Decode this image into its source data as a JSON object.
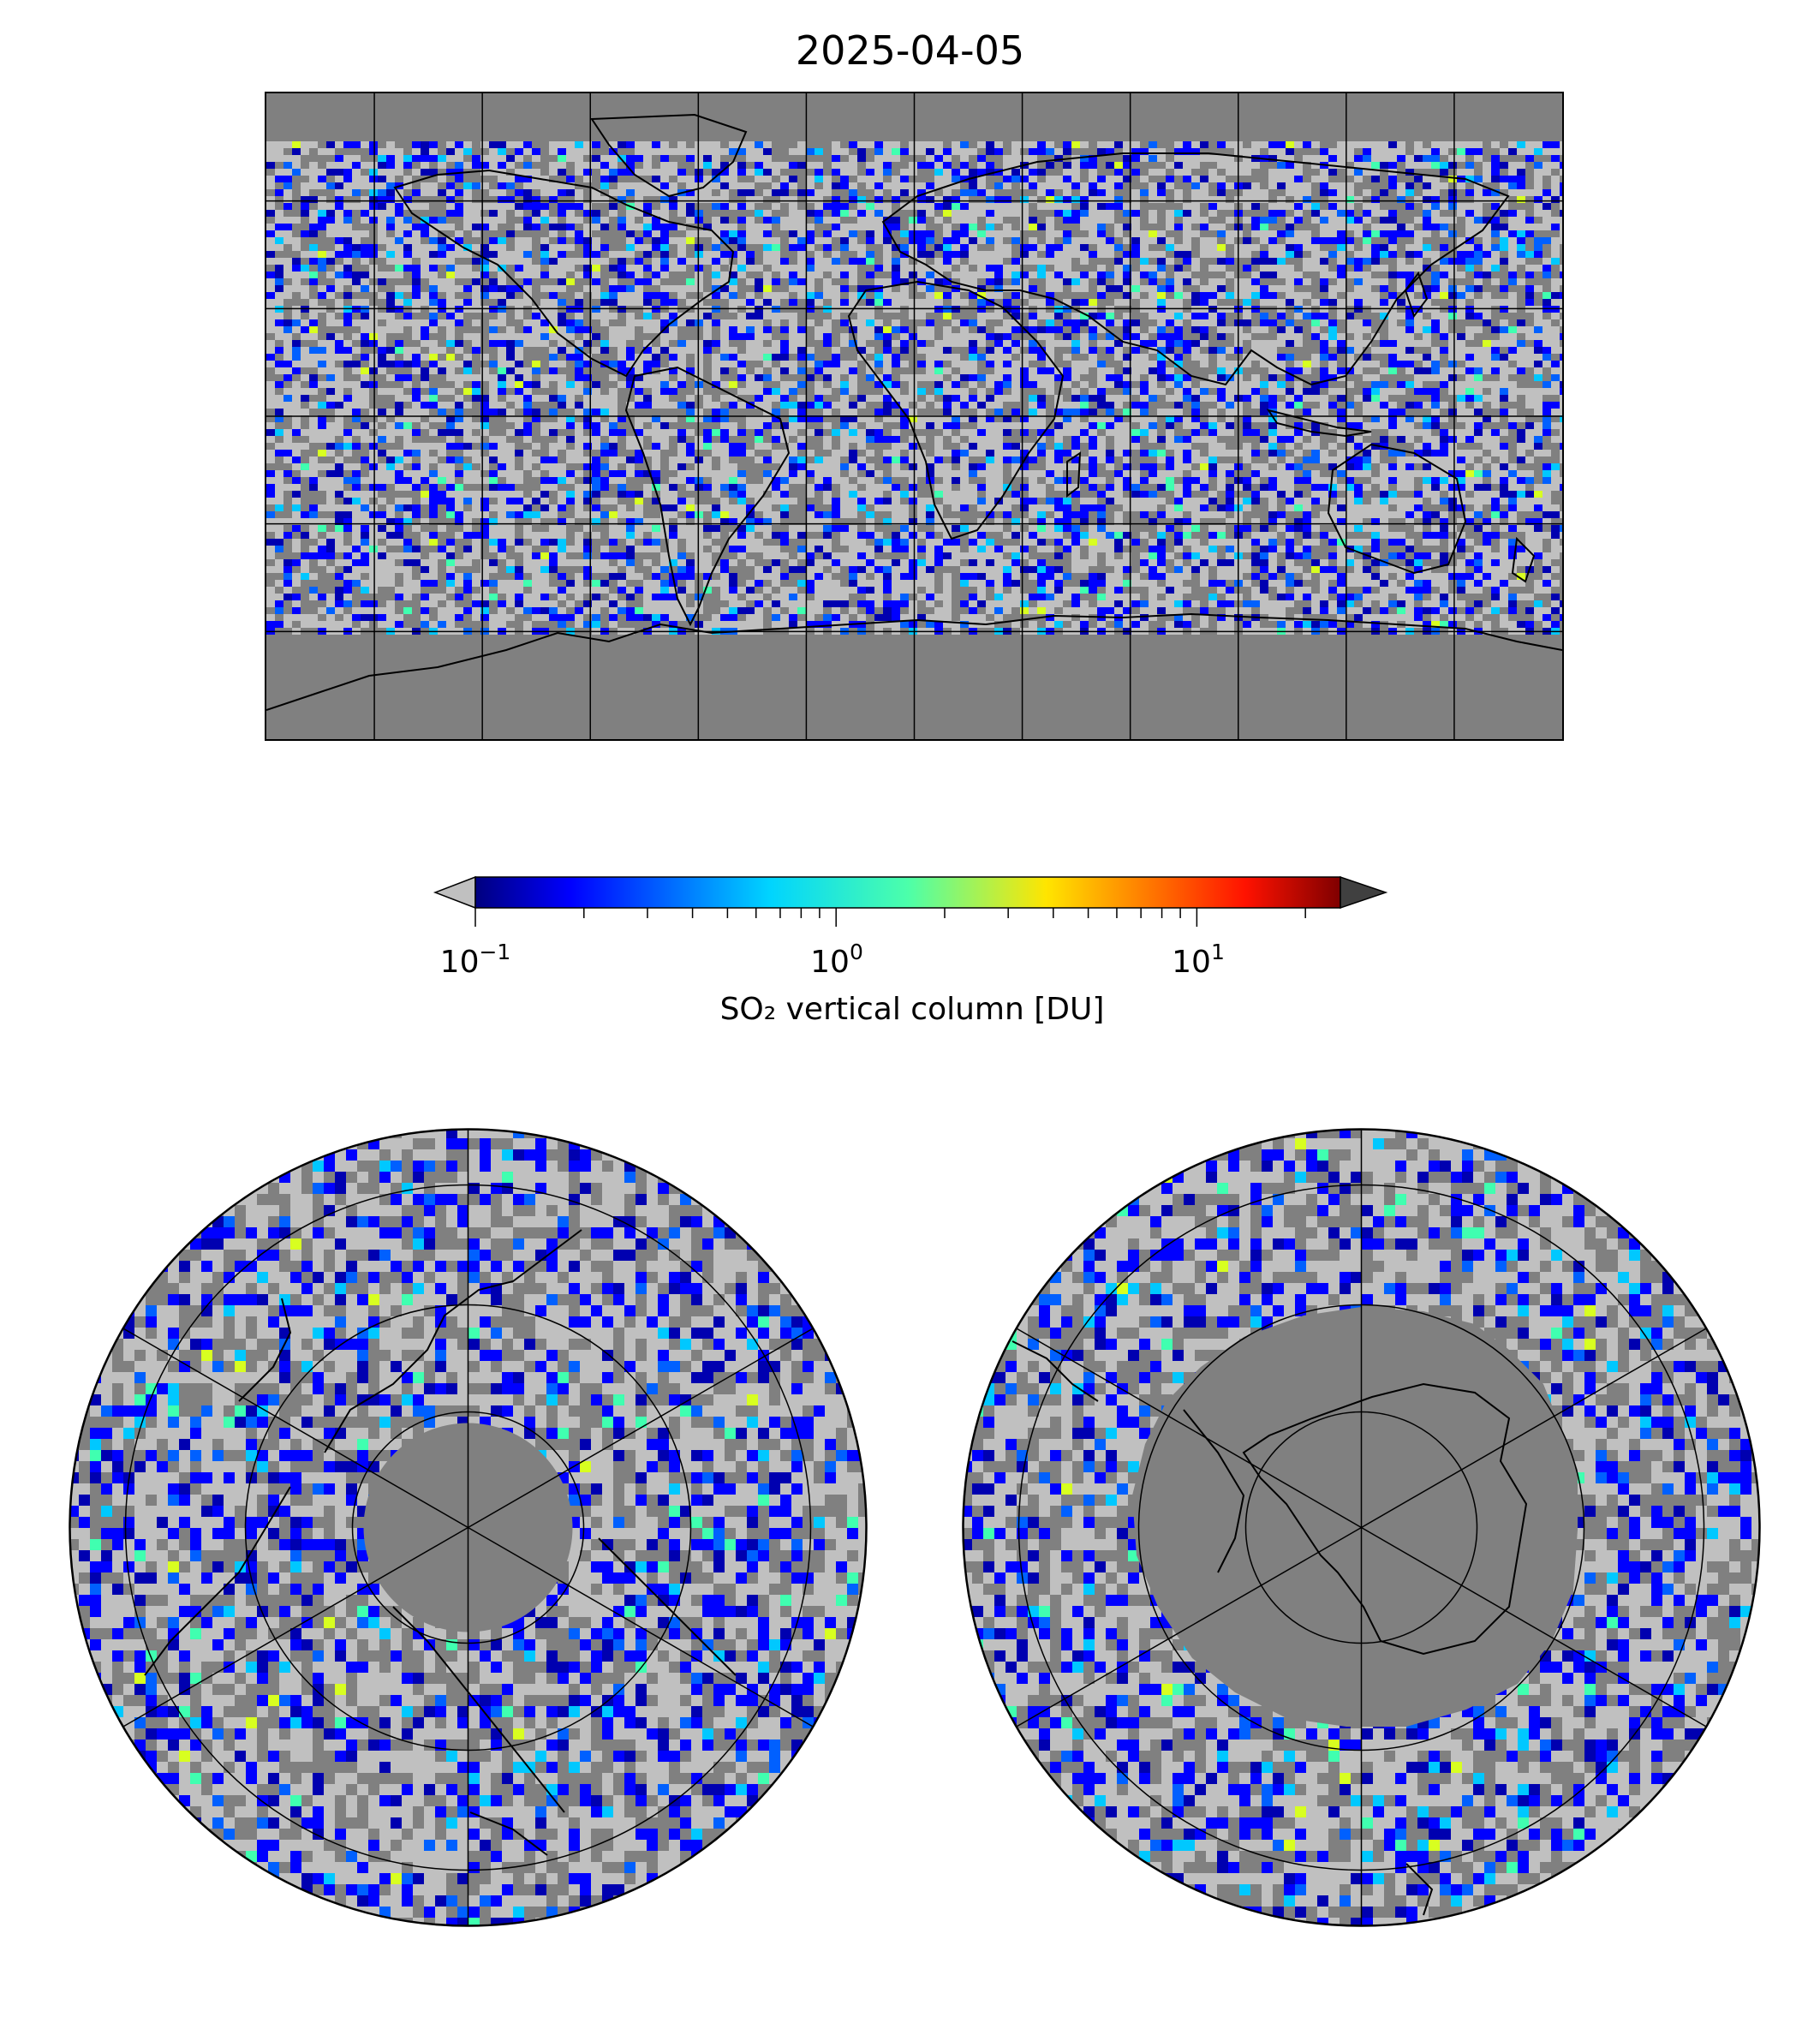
{
  "title": "2025-04-05",
  "colorbar": {
    "label": "SO₂ vertical column [DU]",
    "scale": "log",
    "range": [
      0.1,
      25
    ],
    "colormap": "jet",
    "extend_low_color": "#c0c0c0",
    "extend_high_color": "#404040",
    "ticks": [
      {
        "base": "10",
        "exp": "−1",
        "value": 0.1
      },
      {
        "base": "10",
        "exp": "0",
        "value": 1
      },
      {
        "base": "10",
        "exp": "1",
        "value": 10
      }
    ]
  },
  "colors": {
    "no_data": "#808080",
    "below_range": "#c0c0c0",
    "coastline": "#000000",
    "gridline": "#000000"
  },
  "maps": [
    {
      "name": "global-map",
      "projection": "equirectangular",
      "lon_grid_step": 30,
      "lat_grid_step": 30
    },
    {
      "name": "north-polar-map",
      "projection": "north-polar-stereographic"
    },
    {
      "name": "south-polar-map",
      "projection": "south-polar-stereographic"
    }
  ]
}
